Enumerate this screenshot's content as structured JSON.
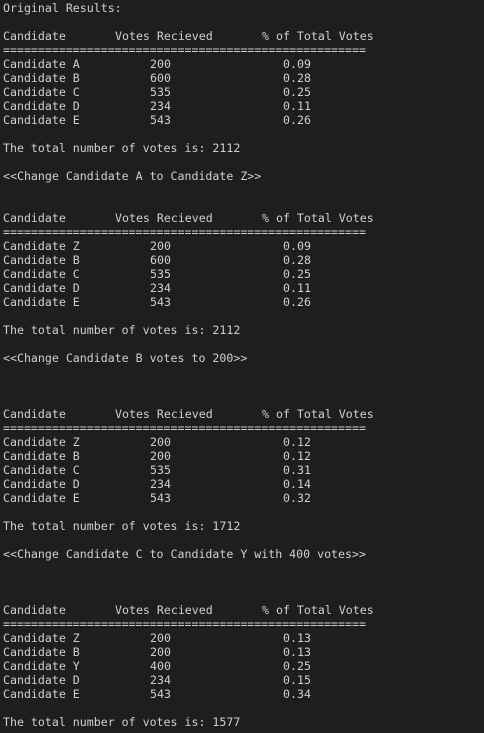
{
  "original_label": "Original Results:",
  "tables": [
    {
      "columns": [
        "Candidate",
        "Votes Recieved",
        "% of Total Votes"
      ],
      "separator": "====================================================",
      "rows": [
        [
          "Candidate A",
          200,
          0.09
        ],
        [
          "Candidate B",
          600,
          0.28
        ],
        [
          "Candidate C",
          535,
          0.25
        ],
        [
          "Candidate D",
          234,
          0.11
        ],
        [
          "Candidate E",
          543,
          0.26
        ]
      ],
      "total": "The total number of votes is: 2112"
    },
    {
      "columns": [
        "Candidate",
        "Votes Recieved",
        "% of Total Votes"
      ],
      "separator": "====================================================",
      "rows": [
        [
          "Candidate Z",
          200,
          0.09
        ],
        [
          "Candidate B",
          600,
          0.28
        ],
        [
          "Candidate C",
          535,
          0.25
        ],
        [
          "Candidate D",
          234,
          0.11
        ],
        [
          "Candidate E",
          543,
          0.26
        ]
      ],
      "total": "The total number of votes is: 2112"
    },
    {
      "columns": [
        "Candidate",
        "Votes Recieved",
        "% of Total Votes"
      ],
      "separator": "====================================================",
      "rows": [
        [
          "Candidate Z",
          200,
          0.12
        ],
        [
          "Candidate B",
          200,
          0.12
        ],
        [
          "Candidate C",
          535,
          0.31
        ],
        [
          "Candidate D",
          234,
          0.14
        ],
        [
          "Candidate E",
          543,
          0.32
        ]
      ],
      "total": "The total number of votes is: 1712"
    },
    {
      "columns": [
        "Candidate",
        "Votes Recieved",
        "% of Total Votes"
      ],
      "separator": "====================================================",
      "rows": [
        [
          "Candidate Z",
          200,
          0.13
        ],
        [
          "Candidate B",
          200,
          0.13
        ],
        [
          "Candidate Y",
          400,
          0.25
        ],
        [
          "Candidate D",
          234,
          0.15
        ],
        [
          "Candidate E",
          543,
          0.34
        ]
      ],
      "total": "The total number of votes is: 1577"
    }
  ],
  "changes": [
    "<<Change Candidate A to Candidate Z>>",
    "<<Change Candidate B votes to 200>>",
    "<<Change Candidate C to Candidate Y with 400 votes>>"
  ]
}
